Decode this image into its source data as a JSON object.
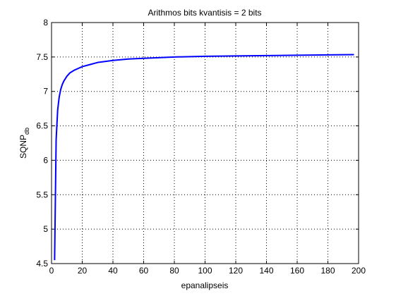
{
  "chart_data": {
    "type": "line",
    "title": "Arithmos bits kvantisis = 2 bits",
    "xlabel": "epanalipseis",
    "ylabel_main": "SQNP",
    "ylabel_sub": "db",
    "xlim": [
      0,
      200
    ],
    "ylim": [
      4.5,
      8
    ],
    "x_ticks": [
      0,
      20,
      40,
      60,
      80,
      100,
      120,
      140,
      160,
      180,
      200
    ],
    "y_ticks": [
      4.5,
      5,
      5.5,
      6,
      6.5,
      7,
      7.5,
      8
    ],
    "y_tick_labels": [
      "4.5",
      "5",
      "5.5",
      "6",
      "6.5",
      "7",
      "7.5",
      "8"
    ],
    "grid": true,
    "line_color": "#0000ff",
    "series": [
      {
        "x": [
          2,
          3,
          4,
          5,
          6,
          7,
          8,
          10,
          12,
          15,
          18,
          20,
          25,
          30,
          40,
          50,
          60,
          80,
          100,
          120,
          140,
          160,
          180,
          197
        ],
        "values": [
          4.55,
          6.3,
          6.73,
          6.92,
          7.03,
          7.1,
          7.15,
          7.22,
          7.27,
          7.31,
          7.34,
          7.36,
          7.39,
          7.42,
          7.45,
          7.47,
          7.48,
          7.5,
          7.51,
          7.515,
          7.52,
          7.525,
          7.53,
          7.535
        ]
      }
    ]
  }
}
